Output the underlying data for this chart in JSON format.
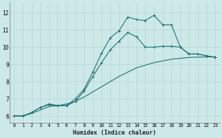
{
  "xlabel": "Humidex (Indice chaleur)",
  "background_color": "#cde8e8",
  "grid_color": "#b8d8d8",
  "line_color": "#1a7070",
  "xlim": [
    -0.5,
    23.5
  ],
  "ylim": [
    5.6,
    12.6
  ],
  "yticks": [
    6,
    7,
    8,
    9,
    10,
    11,
    12
  ],
  "xticks": [
    0,
    1,
    2,
    3,
    4,
    5,
    6,
    7,
    8,
    9,
    10,
    11,
    12,
    13,
    14,
    15,
    16,
    17,
    18,
    19,
    20,
    21,
    22,
    23
  ],
  "series1": [
    [
      0,
      6.0
    ],
    [
      1,
      6.0
    ],
    [
      2,
      6.2
    ],
    [
      3,
      6.5
    ],
    [
      4,
      6.65
    ],
    [
      5,
      6.6
    ],
    [
      6,
      6.6
    ],
    [
      7,
      7.0
    ],
    [
      8,
      7.55
    ],
    [
      9,
      8.55
    ],
    [
      10,
      9.65
    ],
    [
      11,
      10.55
    ],
    [
      12,
      10.95
    ],
    [
      13,
      11.75
    ],
    [
      14,
      11.6
    ],
    [
      15,
      11.55
    ],
    [
      16,
      11.85
    ],
    [
      17,
      11.3
    ],
    [
      18,
      11.3
    ],
    [
      19,
      10.0
    ],
    [
      20,
      9.6
    ],
    [
      21,
      9.6
    ],
    [
      22,
      9.5
    ],
    [
      23,
      9.4
    ]
  ],
  "series2": [
    [
      0,
      6.0
    ],
    [
      1,
      6.0
    ],
    [
      2,
      6.2
    ],
    [
      3,
      6.5
    ],
    [
      4,
      6.7
    ],
    [
      5,
      6.6
    ],
    [
      6,
      6.6
    ],
    [
      7,
      6.85
    ],
    [
      8,
      7.45
    ],
    [
      9,
      8.3
    ],
    [
      10,
      9.1
    ],
    [
      11,
      9.85
    ],
    [
      12,
      10.35
    ],
    [
      13,
      10.85
    ],
    [
      14,
      10.6
    ],
    [
      15,
      10.0
    ],
    [
      16,
      10.0
    ],
    [
      17,
      10.05
    ],
    [
      18,
      10.05
    ],
    [
      19,
      10.0
    ],
    [
      20,
      9.6
    ],
    [
      21,
      9.6
    ],
    [
      22,
      9.5
    ],
    [
      23,
      9.4
    ]
  ],
  "series3": [
    [
      0,
      6.0
    ],
    [
      1,
      6.0
    ],
    [
      2,
      6.15
    ],
    [
      3,
      6.35
    ],
    [
      4,
      6.55
    ],
    [
      5,
      6.6
    ],
    [
      6,
      6.7
    ],
    [
      7,
      6.85
    ],
    [
      8,
      7.1
    ],
    [
      9,
      7.4
    ],
    [
      10,
      7.7
    ],
    [
      11,
      8.0
    ],
    [
      12,
      8.3
    ],
    [
      13,
      8.55
    ],
    [
      14,
      8.8
    ],
    [
      15,
      8.95
    ],
    [
      16,
      9.1
    ],
    [
      17,
      9.2
    ],
    [
      18,
      9.3
    ],
    [
      19,
      9.35
    ],
    [
      20,
      9.4
    ],
    [
      21,
      9.42
    ],
    [
      22,
      9.43
    ],
    [
      23,
      9.44
    ]
  ]
}
